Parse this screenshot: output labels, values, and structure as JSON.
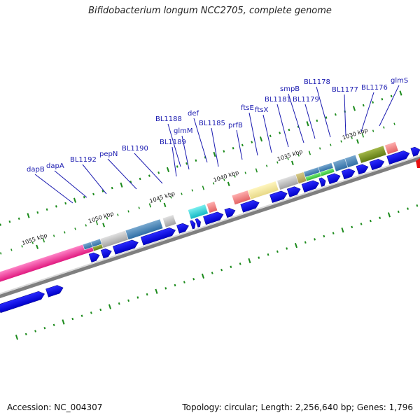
{
  "title": "Bifidobacterium longum NCC2705, complete genome",
  "footer": {
    "accession": "Accession: NC_004307",
    "summary": "Topology: circular; Length: 2,256,640 bp; Genes: 1,796"
  },
  "kbp_ticks": [
    "1055 kbp",
    "1050 kbp",
    "1045 kbp",
    "1040 kbp",
    "1035 kbp",
    "1030 kbp"
  ],
  "gene_labels": [
    "dapB",
    "dapA",
    "BL1192",
    "pepN",
    "BL1190",
    "BL1189",
    "BL1188",
    "glmM",
    "def",
    "BL1185",
    "prfB",
    "ftsE",
    "ftsX",
    "BL1181",
    "smpB",
    "BL1179",
    "BL1178",
    "BL1177",
    "BL1176",
    "glmS"
  ],
  "colors": {
    "cds_arrow": "#0000ee",
    "backbone": "#888888",
    "tick": "#1a8a1a",
    "label": "#1a1ab0"
  }
}
